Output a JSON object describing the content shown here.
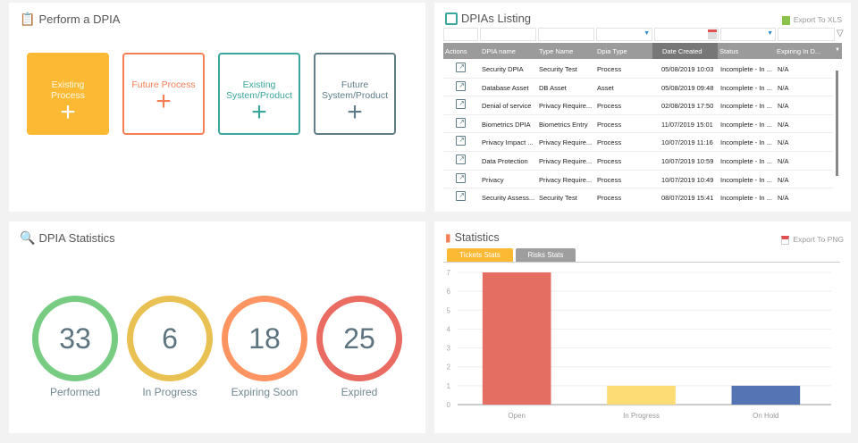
{
  "perform": {
    "title": "Perform a DPIA",
    "tiles": [
      {
        "label": "Existing Process",
        "color": "#fbb934"
      },
      {
        "label": "Future Process",
        "color": "#f47f55"
      },
      {
        "label": "Existing System/Product",
        "color": "#3ba69b"
      },
      {
        "label": "Future System/Product",
        "color": "#5e7d87"
      }
    ],
    "plus": "+"
  },
  "stats": {
    "title": "DPIA Statistics",
    "items": [
      {
        "value": "33",
        "label": "Performed",
        "color": "#77cc82"
      },
      {
        "value": "6",
        "label": "In Progress",
        "color": "#e9c052"
      },
      {
        "value": "18",
        "label": "Expiring Soon",
        "color": "#fd9461"
      },
      {
        "value": "25",
        "label": "Expired",
        "color": "#e96b61"
      }
    ]
  },
  "listing": {
    "title": "DPIAs Listing",
    "export": "Export To XLS",
    "columns": [
      "Actions",
      "DPIA name",
      "Type Name",
      "Dpia Type",
      "Date Created",
      "Status",
      "Expiring In D..."
    ],
    "rows": [
      [
        "Security DPIA",
        "Security Test",
        "Process",
        "05/08/2019 10:03",
        "Incomplete - In ...",
        "N/A"
      ],
      [
        "Database Asset",
        "DB Asset",
        "Asset",
        "05/08/2019 09:48",
        "Incomplete - In ...",
        "N/A"
      ],
      [
        "Denial of service",
        "Privacy Require...",
        "Process",
        "02/08/2019 17:50",
        "Incomplete - In ...",
        "N/A"
      ],
      [
        "Biometrics DPIA",
        "Biometrics Entry",
        "Process",
        "11/07/2019 15:01",
        "Incomplete - In ...",
        "N/A"
      ],
      [
        "Privacy Impact ...",
        "Privacy Require...",
        "Process",
        "10/07/2019 11:16",
        "Incomplete - In ...",
        "N/A"
      ],
      [
        "Data Protection",
        "Privacy Require...",
        "Process",
        "10/07/2019 10:59",
        "Incomplete - In ...",
        "N/A"
      ],
      [
        "Privacy",
        "Privacy Require...",
        "Process",
        "10/07/2019 10:49",
        "Incomplete - In ...",
        "N/A"
      ],
      [
        "Security Assess...",
        "Security Test",
        "Process",
        "08/07/2019 15:41",
        "Incomplete - In ...",
        "N/A"
      ]
    ]
  },
  "statistics": {
    "title": "Statistics",
    "export": "Export To PNG",
    "tabs": [
      "Tickets Stats",
      "Risks Stats"
    ],
    "active_tab": 0
  },
  "chart_data": {
    "type": "bar",
    "categories": [
      "Open",
      "In Progress",
      "On Hold"
    ],
    "values": [
      7,
      1,
      1
    ],
    "colors": [
      "#e56e62",
      "#fddb75",
      "#5574b4"
    ],
    "ylim": [
      0,
      7
    ],
    "yticks": [
      "0",
      "1",
      "2",
      "3",
      "4",
      "5",
      "6",
      "7"
    ],
    "grid": true
  }
}
